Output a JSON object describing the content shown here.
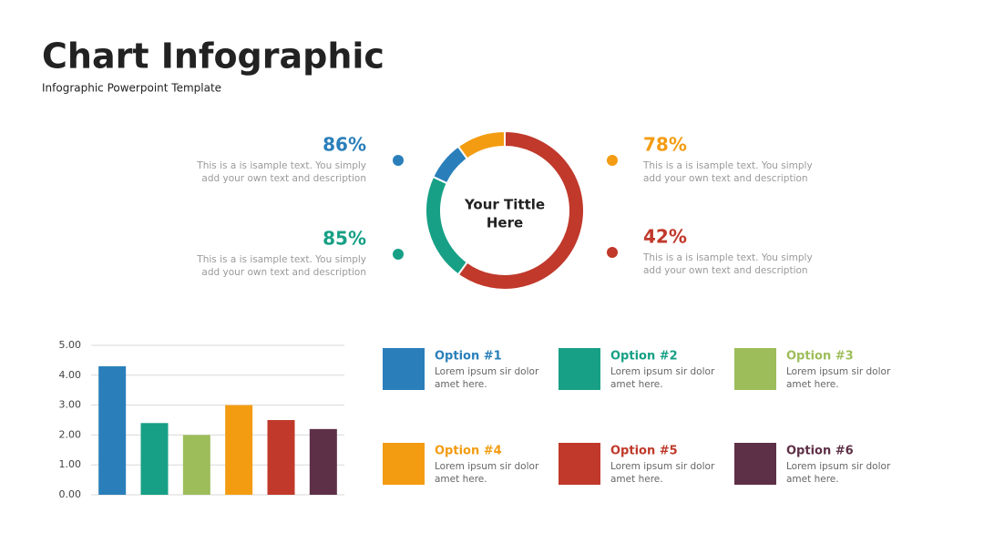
{
  "header": {
    "title": "Chart Infographic",
    "subtitle": "Infographic Powerpoint Template"
  },
  "chart_data": [
    {
      "type": "donut",
      "title_lines": [
        "Your Tittle",
        "Here"
      ],
      "values": [
        60,
        22,
        8,
        10
      ],
      "colors": [
        "#c0392b",
        "#17a085",
        "#2a7fba",
        "#f39c12"
      ]
    },
    {
      "type": "bar",
      "values": [
        4.3,
        2.4,
        2.0,
        3.0,
        2.5,
        2.2
      ],
      "colors": [
        "#2a7fba",
        "#17a085",
        "#9dbd5a",
        "#f39c12",
        "#c0392b",
        "#5e3047"
      ],
      "ylim": [
        0,
        5
      ],
      "yticks": [
        {
          "value": 0,
          "label": "0.00"
        },
        {
          "value": 1,
          "label": "1.00"
        },
        {
          "value": 2,
          "label": "2.00"
        },
        {
          "value": 3,
          "label": "3.00"
        },
        {
          "value": 4,
          "label": "4.00"
        },
        {
          "value": 5,
          "label": "5.00"
        }
      ],
      "grid": true
    }
  ],
  "stats": [
    {
      "percent": "86%",
      "lines": [
        "This is a is isample text. You simply",
        "add your own text and description"
      ],
      "color": "#2a7fba"
    },
    {
      "percent": "85%",
      "lines": [
        "This is a is isample text. You simply",
        "add your own text and description"
      ],
      "color": "#17a085"
    },
    {
      "percent": "78%",
      "lines": [
        "This is a is isample text. You simply",
        "add your own text and description"
      ],
      "color": "#f39c12"
    },
    {
      "percent": "42%",
      "lines": [
        "This is a is isample text. You simply",
        "add your own text and description"
      ],
      "color": "#c0392b"
    }
  ],
  "options": [
    {
      "name": "Option #1",
      "lines": [
        "Lorem ipsum sir dolor",
        "amet here."
      ],
      "color": "#2a7fba"
    },
    {
      "name": "Option #2",
      "lines": [
        "Lorem ipsum sir dolor",
        "amet here."
      ],
      "color": "#17a085"
    },
    {
      "name": "Option #3",
      "lines": [
        "Lorem ipsum sir dolor",
        "amet here."
      ],
      "color": "#9dbd5a"
    },
    {
      "name": "Option #4",
      "lines": [
        "Lorem ipsum sir dolor",
        "amet here."
      ],
      "color": "#f39c12"
    },
    {
      "name": "Option #5",
      "lines": [
        "Lorem ipsum sir dolor",
        "amet here."
      ],
      "color": "#c0392b"
    },
    {
      "name": "Option #6",
      "lines": [
        "Lorem ipsum sir dolor",
        "amet here."
      ],
      "color": "#5e3047"
    }
  ]
}
